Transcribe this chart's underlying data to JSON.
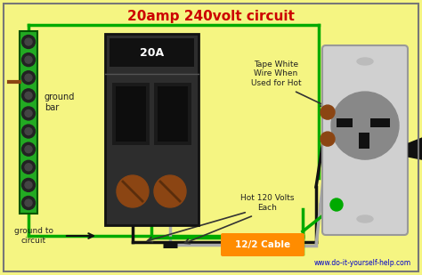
{
  "title": "20amp 240volt circuit",
  "title_color": "#cc0000",
  "title_fontsize": 11,
  "bg_color": "#f5f582",
  "border_color": "#888888",
  "website": "www.do-it-yourself-help.com",
  "website_color": "#0000cc",
  "label_ground_bar": "ground\nbar",
  "label_ground_circuit": "ground to\ncircuit",
  "label_hot": "Hot 120 Volts\nEach",
  "label_tape": "Tape White\nWire When\nUsed for Hot",
  "label_cable": "12/2 Cable",
  "cable_label_color": "#ffffff",
  "cable_bg_color": "#ff8c00",
  "green_color": "#00aa00",
  "dark_gray": "#333333",
  "breaker_color": "#2a2a2a",
  "ground_bar_color": "#22aa22",
  "screw_dark": "#222222",
  "screw_brown": "#8B4513"
}
